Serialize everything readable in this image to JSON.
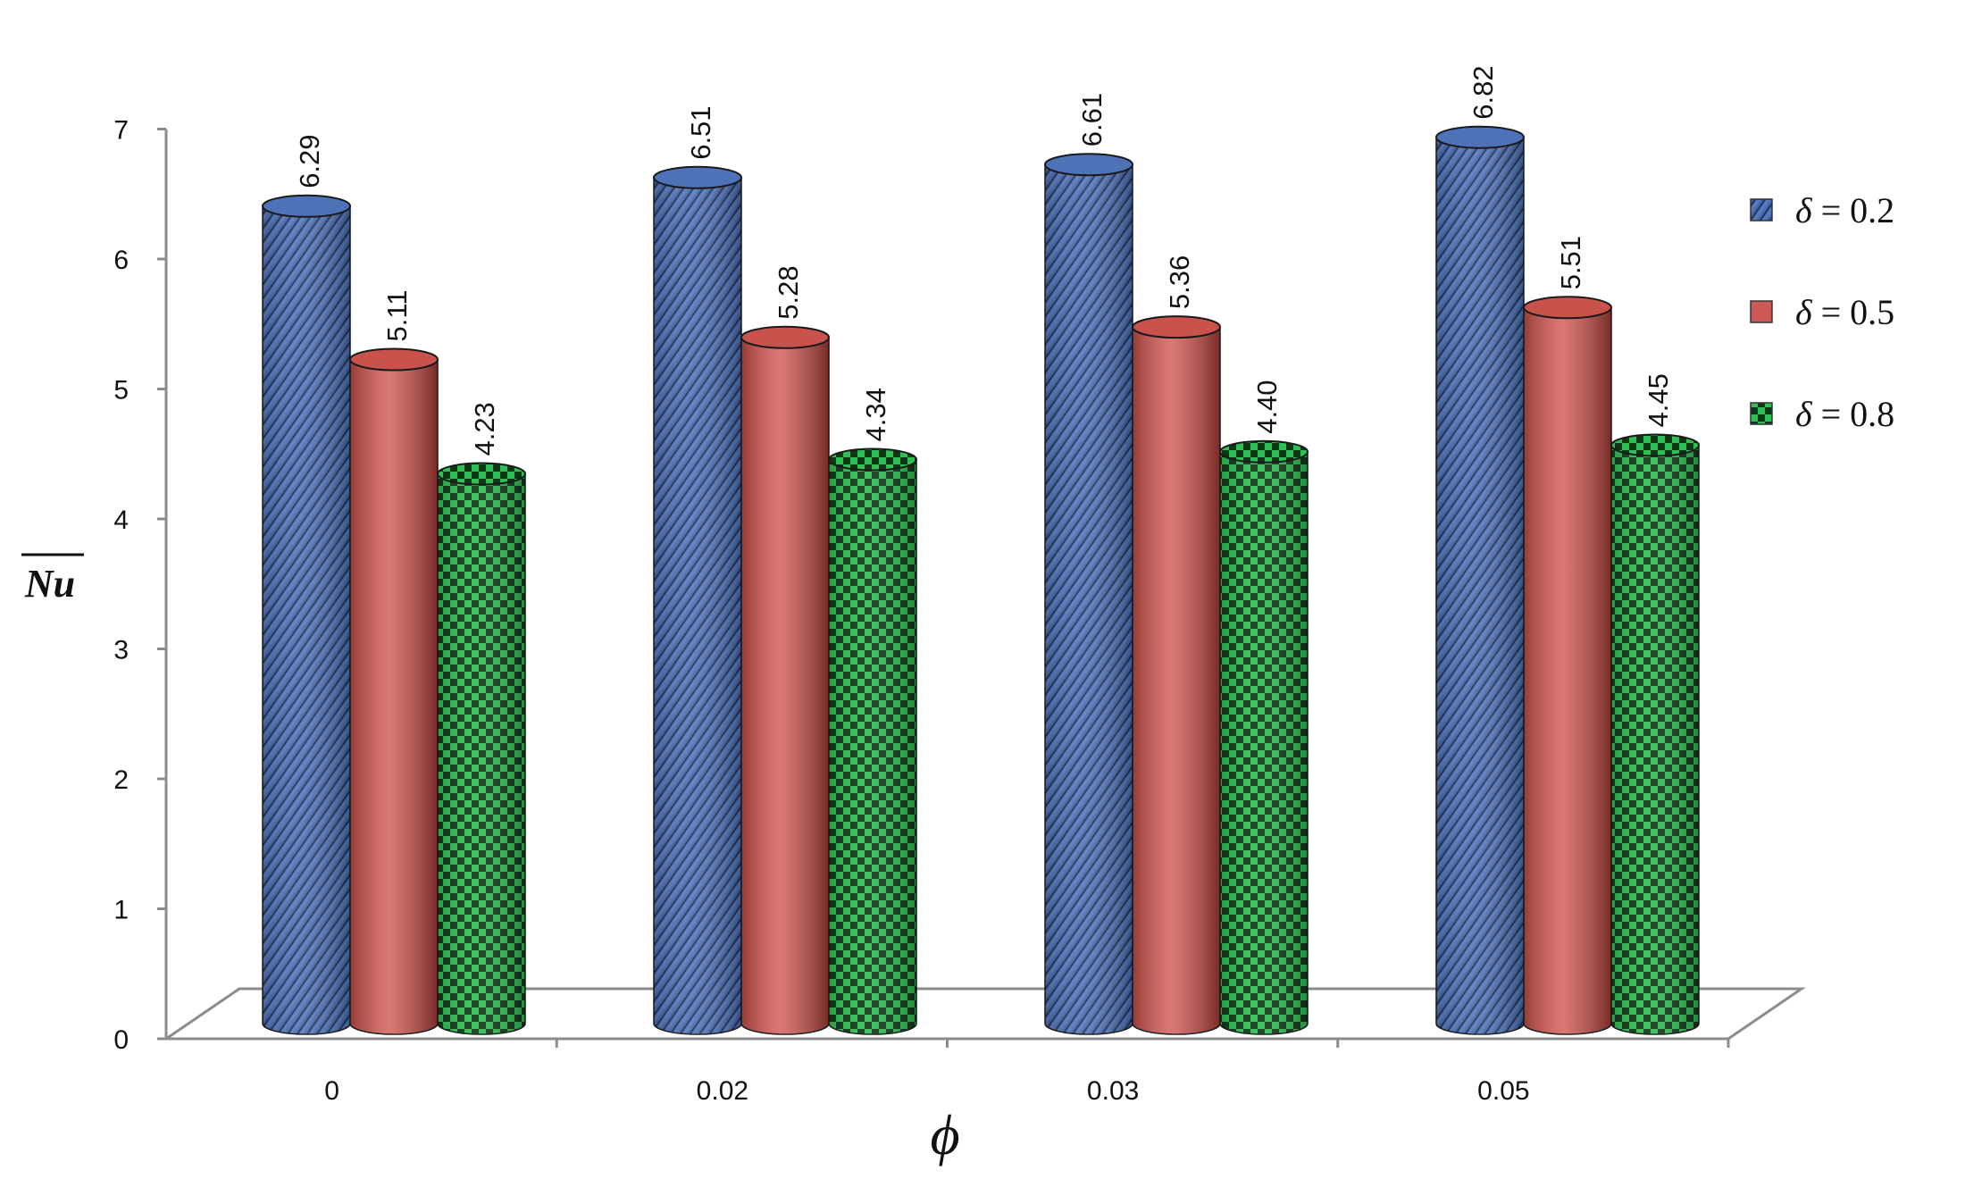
{
  "chart_data": {
    "type": "bar",
    "categories": [
      "0",
      "0.02",
      "0.03",
      "0.05"
    ],
    "series": [
      {
        "name": "δ = 0.2",
        "symbol": "δ",
        "value_label": "0.2",
        "values": [
          6.29,
          6.51,
          6.61,
          6.82
        ],
        "labels": [
          "6.29",
          "6.51",
          "6.61",
          "6.82"
        ],
        "color": "#4a6fb5",
        "pattern": "diagonal-stripes"
      },
      {
        "name": "δ = 0.5",
        "symbol": "δ",
        "value_label": "0.5",
        "values": [
          5.11,
          5.28,
          5.36,
          5.51
        ],
        "labels": [
          "5.11",
          "5.28",
          "5.36",
          "5.51"
        ],
        "color": "#cc5b57",
        "pattern": "solid"
      },
      {
        "name": "δ = 0.8",
        "symbol": "δ",
        "value_label": "0.8",
        "values": [
          4.23,
          4.34,
          4.4,
          4.45
        ],
        "labels": [
          "4.23",
          "4.34",
          "4.40",
          "4.45"
        ],
        "color": "#2fbf52",
        "pattern": "checkerboard"
      }
    ],
    "xlabel": "ϕ",
    "ylabel": "Nu",
    "ylabel_overline": true,
    "ylim": [
      0,
      7
    ],
    "yticks": [
      "0",
      "1",
      "2",
      "3",
      "4",
      "5",
      "6",
      "7"
    ],
    "style": "3d-cylinder",
    "grid": false,
    "legend": "right"
  }
}
